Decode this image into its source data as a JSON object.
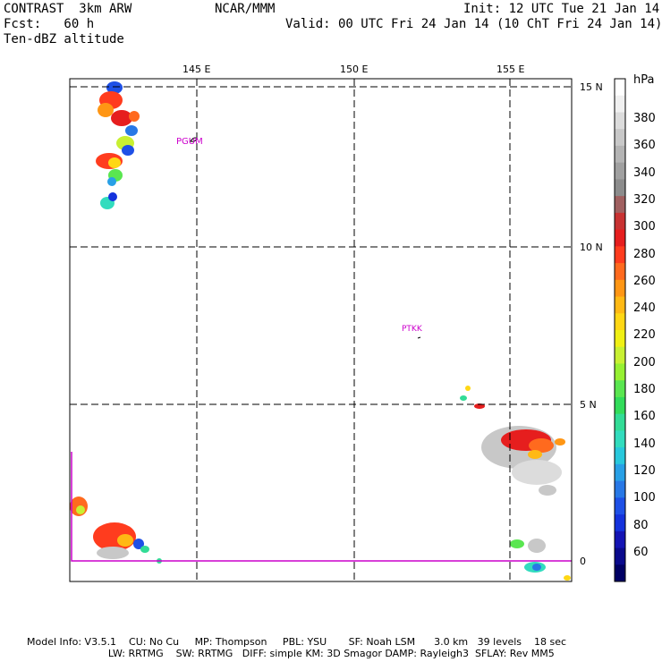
{
  "header": {
    "model": "CONTRAST  3km ARW",
    "org": "NCAR/MMM",
    "init": "Init: 12 UTC Tue 21 Jan 14",
    "fcst": "Fcst:   60 h",
    "valid": "Valid: 00 UTC Fri 24 Jan 14 (10 ChT Fri 24 Jan 14)",
    "field": "Ten-dBZ altitude"
  },
  "axes": {
    "lon_labels": [
      "145 E",
      "150 E",
      "155 E"
    ],
    "lat_labels": [
      "15 N",
      "10 N",
      "5 N",
      "0"
    ]
  },
  "stations": [
    "PGUM",
    "PTKK"
  ],
  "colorbar": {
    "unit": "hPa",
    "labels": [
      "380",
      "360",
      "340",
      "320",
      "300",
      "280",
      "260",
      "240",
      "220",
      "200",
      "180",
      "160",
      "140",
      "120",
      "100",
      "80",
      "60"
    ],
    "colors": [
      "#ffffff",
      "#f0f0f0",
      "#dcdcdc",
      "#c8c8c8",
      "#b4b4b4",
      "#a0a0a0",
      "#8c8c8c",
      "#a06060",
      "#c83232",
      "#e61e1e",
      "#ff3c1e",
      "#ff6a1e",
      "#ff9614",
      "#ffb914",
      "#ffd714",
      "#f0f014",
      "#c8f032",
      "#96f032",
      "#5ae650",
      "#32dc5a",
      "#32dc96",
      "#32dcbe",
      "#28c8dc",
      "#28a0e6",
      "#2878e6",
      "#1e50e6",
      "#1432dc",
      "#1414b4",
      "#0a0a8c",
      "#000064"
    ]
  },
  "footer": {
    "line1": "Model Info: V3.5.1    CU: No Cu     MP: Thompson     PBL: YSU       SF: Noah LSM      3.0 km   39 levels    18 sec",
    "line2": "                          LW: RRTMG    SW: RRTMG   DIFF: simple KM: 3D Smagor DAMP: Rayleigh3  SFLAY: Rev MM5"
  }
}
